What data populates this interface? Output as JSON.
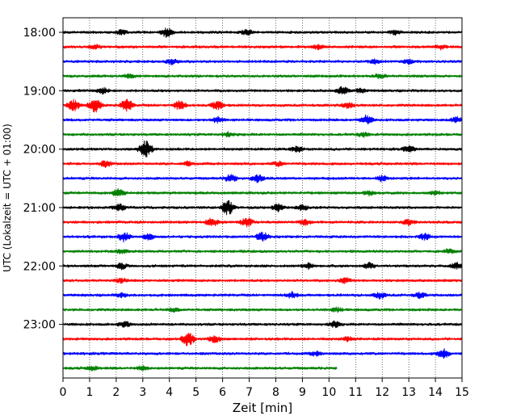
{
  "chart_data": {
    "type": "line",
    "title": "",
    "xlabel": "Zeit  [min]",
    "ylabel": "UTC (Lokalzeit = UTC + 01:00)",
    "xlim": [
      0,
      15
    ],
    "x_ticks": [
      "0",
      "1",
      "2",
      "3",
      "4",
      "5",
      "6",
      "7",
      "8",
      "9",
      "10",
      "11",
      "12",
      "13",
      "14",
      "15"
    ],
    "y_ticks": [
      "18:00",
      "19:00",
      "20:00",
      "21:00",
      "22:00",
      "23:00"
    ],
    "grid": "vertical dotted",
    "series_colors": [
      "#000000",
      "#ff0000",
      "#0000ff",
      "#008000"
    ],
    "rows": [
      {
        "label": "18:00",
        "start": "18:00",
        "color": "#000000",
        "end_min": 15,
        "events": [
          [
            3.9,
            6
          ],
          [
            6.9,
            4
          ],
          [
            2.2,
            3
          ],
          [
            12.5,
            3
          ]
        ]
      },
      {
        "label": "18:15",
        "start": "18:15",
        "color": "#ff0000",
        "end_min": 15,
        "events": [
          [
            1.2,
            3
          ],
          [
            9.6,
            3
          ],
          [
            14.2,
            3
          ]
        ]
      },
      {
        "label": "18:30",
        "start": "18:30",
        "color": "#0000ff",
        "end_min": 15,
        "events": [
          [
            4.1,
            4
          ],
          [
            11.7,
            3
          ],
          [
            13.0,
            3
          ]
        ]
      },
      {
        "label": "18:45",
        "start": "18:45",
        "color": "#008000",
        "end_min": 15,
        "events": [
          [
            2.5,
            3
          ],
          [
            11.9,
            3
          ]
        ]
      },
      {
        "label": "19:00",
        "start": "19:00",
        "color": "#000000",
        "end_min": 15,
        "events": [
          [
            1.5,
            4
          ],
          [
            10.5,
            5
          ],
          [
            11.2,
            3
          ]
        ]
      },
      {
        "label": "19:15",
        "start": "19:15",
        "color": "#ff0000",
        "end_min": 15,
        "events": [
          [
            0.4,
            7
          ],
          [
            1.2,
            9
          ],
          [
            2.4,
            8
          ],
          [
            4.4,
            6
          ],
          [
            5.8,
            6
          ],
          [
            10.7,
            4
          ]
        ]
      },
      {
        "label": "19:30",
        "start": "19:30",
        "color": "#0000ff",
        "end_min": 15,
        "events": [
          [
            5.8,
            4
          ],
          [
            11.4,
            6
          ],
          [
            14.8,
            4
          ]
        ]
      },
      {
        "label": "19:45",
        "start": "19:45",
        "color": "#008000",
        "end_min": 15,
        "events": [
          [
            6.2,
            3
          ],
          [
            11.3,
            3
          ]
        ]
      },
      {
        "label": "20:00",
        "start": "20:00",
        "color": "#000000",
        "end_min": 15,
        "events": [
          [
            3.1,
            12
          ],
          [
            8.8,
            4
          ],
          [
            13.0,
            4
          ]
        ]
      },
      {
        "label": "20:15",
        "start": "20:15",
        "color": "#ff0000",
        "end_min": 15,
        "events": [
          [
            1.6,
            4
          ],
          [
            4.7,
            3
          ],
          [
            8.1,
            3
          ]
        ]
      },
      {
        "label": "20:30",
        "start": "20:30",
        "color": "#0000ff",
        "end_min": 15,
        "events": [
          [
            6.3,
            5
          ],
          [
            7.3,
            5
          ],
          [
            12.0,
            4
          ]
        ]
      },
      {
        "label": "20:45",
        "start": "20:45",
        "color": "#008000",
        "end_min": 15,
        "events": [
          [
            2.1,
            6
          ],
          [
            11.5,
            3
          ],
          [
            14.0,
            3
          ]
        ]
      },
      {
        "label": "21:00",
        "start": "21:00",
        "color": "#000000",
        "end_min": 15,
        "events": [
          [
            2.1,
            5
          ],
          [
            6.2,
            10
          ],
          [
            8.1,
            5
          ],
          [
            9.0,
            4
          ]
        ]
      },
      {
        "label": "21:15",
        "start": "21:15",
        "color": "#ff0000",
        "end_min": 15,
        "events": [
          [
            5.6,
            6
          ],
          [
            6.9,
            6
          ],
          [
            9.1,
            4
          ],
          [
            13.0,
            4
          ]
        ]
      },
      {
        "label": "21:30",
        "start": "21:30",
        "color": "#0000ff",
        "end_min": 15,
        "events": [
          [
            2.3,
            6
          ],
          [
            3.2,
            4
          ],
          [
            7.5,
            6
          ],
          [
            13.6,
            4
          ]
        ]
      },
      {
        "label": "21:45",
        "start": "21:45",
        "color": "#008000",
        "end_min": 15,
        "events": [
          [
            2.2,
            3
          ],
          [
            14.5,
            3
          ]
        ]
      },
      {
        "label": "22:00",
        "start": "22:00",
        "color": "#000000",
        "end_min": 15,
        "events": [
          [
            2.2,
            4
          ],
          [
            9.2,
            4
          ],
          [
            11.5,
            4
          ],
          [
            14.8,
            4
          ]
        ]
      },
      {
        "label": "22:15",
        "start": "22:15",
        "color": "#ff0000",
        "end_min": 15,
        "events": [
          [
            2.2,
            3
          ],
          [
            10.6,
            4
          ]
        ]
      },
      {
        "label": "22:30",
        "start": "22:30",
        "color": "#0000ff",
        "end_min": 15,
        "events": [
          [
            2.2,
            3
          ],
          [
            8.6,
            4
          ],
          [
            11.9,
            4
          ],
          [
            13.4,
            4
          ]
        ]
      },
      {
        "label": "22:45",
        "start": "22:45",
        "color": "#008000",
        "end_min": 15,
        "events": [
          [
            4.2,
            3
          ],
          [
            10.3,
            3
          ]
        ]
      },
      {
        "label": "23:00",
        "start": "23:00",
        "color": "#000000",
        "end_min": 15,
        "events": [
          [
            2.3,
            4
          ],
          [
            10.2,
            4
          ]
        ]
      },
      {
        "label": "23:15",
        "start": "23:15",
        "color": "#ff0000",
        "end_min": 15,
        "events": [
          [
            4.7,
            9
          ],
          [
            5.7,
            5
          ],
          [
            10.7,
            3
          ]
        ]
      },
      {
        "label": "23:30",
        "start": "23:30",
        "color": "#0000ff",
        "end_min": 15,
        "events": [
          [
            9.5,
            3
          ],
          [
            14.3,
            6
          ]
        ]
      },
      {
        "label": "23:45",
        "start": "23:45",
        "color": "#008000",
        "end_min": 10.3,
        "events": [
          [
            1.1,
            3
          ],
          [
            3.0,
            3
          ]
        ]
      }
    ]
  }
}
